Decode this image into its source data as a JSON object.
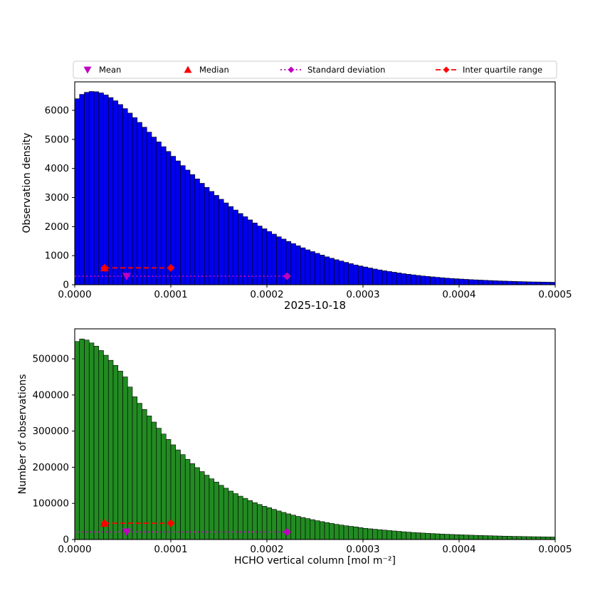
{
  "figure": {
    "title": "2025-10-18",
    "xlabel": "HCHO vertical column [mol m⁻²]",
    "background": "#ffffff"
  },
  "colors": {
    "mean": "#bf00bf",
    "median": "#ff0000",
    "std": "#bf00bf",
    "iqr": "#ff0000",
    "bar_edge": "#000000",
    "legend_border": "#cccccc"
  },
  "legend": {
    "entries": [
      {
        "label": "Mean",
        "marker": "triangle-down",
        "color": "#bf00bf",
        "line": "none"
      },
      {
        "label": "Median",
        "marker": "triangle-up",
        "color": "#ff0000",
        "line": "none"
      },
      {
        "label": "Standard deviation",
        "marker": "diamond",
        "color": "#bf00bf",
        "line": "dotted"
      },
      {
        "label": "Inter quartile range",
        "marker": "diamond",
        "color": "#ff0000",
        "line": "dashed"
      }
    ]
  },
  "chart_data": [
    {
      "type": "bar",
      "title": "",
      "ylabel": "Observation density",
      "bar_color": "#0000ee",
      "xlim": [
        0,
        0.0005
      ],
      "ylim": [
        0,
        6980
      ],
      "bin_start": 0,
      "bin_width": 5e-06,
      "x_ticks": [
        0,
        0.0001,
        0.0002,
        0.0003,
        0.0004,
        0.0005
      ],
      "x_tick_labels": [
        "0.0000",
        "0.0001",
        "0.0002",
        "0.0003",
        "0.0004",
        "0.0005"
      ],
      "y_ticks": [
        0,
        1000,
        2000,
        3000,
        4000,
        5000,
        6000
      ],
      "y_tick_labels": [
        "0",
        "1000",
        "2000",
        "3000",
        "4000",
        "5000",
        "6000"
      ],
      "values": [
        6400,
        6550,
        6620,
        6650,
        6640,
        6600,
        6530,
        6440,
        6330,
        6200,
        6060,
        5905,
        5750,
        5585,
        5420,
        5250,
        5080,
        4915,
        4750,
        4585,
        4420,
        4260,
        4100,
        3945,
        3790,
        3640,
        3490,
        3350,
        3210,
        3075,
        2940,
        2815,
        2690,
        2570,
        2450,
        2340,
        2230,
        2125,
        2020,
        1925,
        1830,
        1740,
        1650,
        1570,
        1490,
        1415,
        1340,
        1270,
        1200,
        1140,
        1080,
        1020,
        960,
        910,
        860,
        815,
        770,
        725,
        680,
        645,
        610,
        575,
        540,
        510,
        480,
        455,
        430,
        405,
        380,
        360,
        340,
        320,
        300,
        285,
        270,
        255,
        240,
        227,
        215,
        205,
        195,
        185,
        175,
        167,
        160,
        152,
        145,
        137,
        130,
        125,
        120,
        115,
        110,
        105,
        100,
        97,
        95,
        92,
        88,
        85
      ],
      "markers": {
        "mean": {
          "x": 5.4e-05,
          "y": 290
        },
        "median": {
          "x": 3.1e-05,
          "y": 580
        },
        "std": {
          "x1": 0,
          "x2": 0.000221,
          "y": 290
        },
        "iqr": {
          "x1": 3.1e-05,
          "x2": 0.0001,
          "y": 580
        }
      }
    },
    {
      "type": "bar",
      "title": "2025-10-18",
      "ylabel": "Number of observations",
      "bar_color": "#228b22",
      "xlim": [
        0,
        0.0005
      ],
      "ylim": [
        0,
        583000
      ],
      "bin_start": 0,
      "bin_width": 5e-06,
      "x_ticks": [
        0,
        0.0001,
        0.0002,
        0.0003,
        0.0004,
        0.0005
      ],
      "x_tick_labels": [
        "0.0000",
        "0.0001",
        "0.0002",
        "0.0003",
        "0.0004",
        "0.0005"
      ],
      "y_ticks": [
        0,
        100000,
        200000,
        300000,
        400000,
        500000
      ],
      "y_tick_labels": [
        "0",
        "100000",
        "200000",
        "300000",
        "400000",
        "500000"
      ],
      "values": [
        548000,
        555000,
        552000,
        544000,
        535000,
        523000,
        510000,
        496000,
        482000,
        466000,
        450000,
        422000,
        395000,
        377000,
        360000,
        342000,
        325000,
        308000,
        292000,
        277000,
        262000,
        248000,
        235000,
        222000,
        210000,
        199000,
        188000,
        178000,
        168000,
        159000,
        150000,
        142000,
        134000,
        127000,
        120000,
        114000,
        108000,
        102000,
        97000,
        92000,
        88000,
        83500,
        79000,
        75000,
        71000,
        67500,
        64000,
        61000,
        58000,
        55000,
        52000,
        49500,
        47000,
        44500,
        42000,
        40000,
        38000,
        36500,
        35000,
        33000,
        31000,
        29700,
        28400,
        27200,
        26000,
        24800,
        23700,
        22600,
        21500,
        20500,
        19500,
        18700,
        17900,
        17200,
        16500,
        15800,
        15100,
        14500,
        14000,
        13500,
        13000,
        12500,
        12100,
        11600,
        11200,
        10800,
        10400,
        10000,
        9700,
        9300,
        9000,
        8700,
        8500,
        8200,
        8000,
        7800,
        7600,
        7400,
        7200,
        7000
      ],
      "markers": {
        "mean": {
          "x": 5.4e-05,
          "y": 21000
        },
        "median": {
          "x": 3.1e-05,
          "y": 45000
        },
        "std": {
          "x1": 0,
          "x2": 0.000221,
          "y": 21000
        },
        "iqr": {
          "x1": 3.1e-05,
          "x2": 0.0001,
          "y": 45000
        }
      }
    }
  ]
}
